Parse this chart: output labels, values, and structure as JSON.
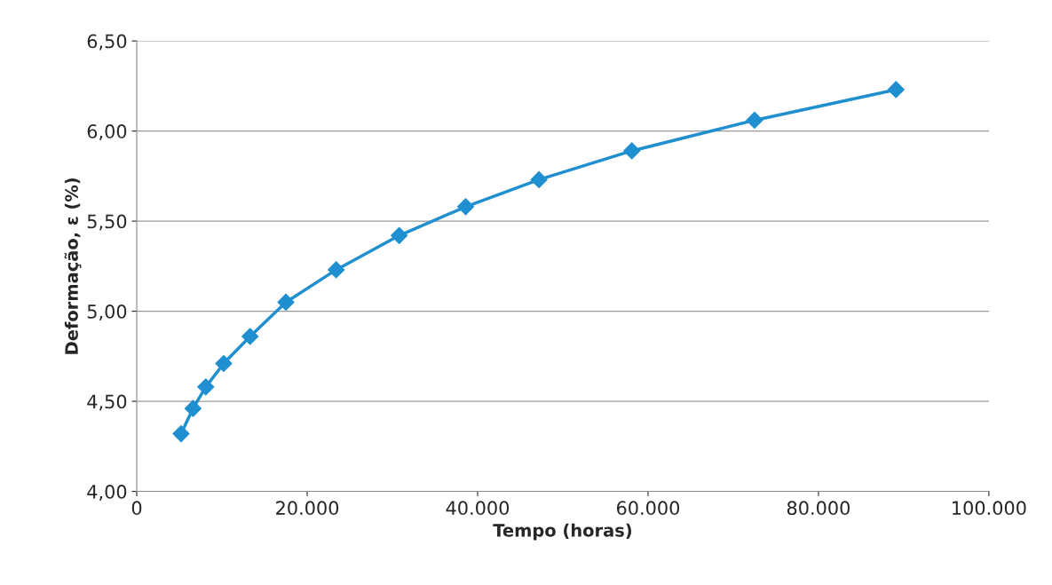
{
  "chart_data": {
    "type": "line",
    "xlabel": "Tempo (horas)",
    "ylabel": "Deformação, ε (%)",
    "x": [
      5200,
      6600,
      8100,
      10200,
      13300,
      17500,
      23400,
      30800,
      38600,
      47200,
      58100,
      72500,
      89100
    ],
    "series": [
      {
        "color": "#1f8fd0",
        "values": [
          4.32,
          4.46,
          4.58,
          4.71,
          4.86,
          5.05,
          5.23,
          5.42,
          5.58,
          5.73,
          5.89,
          6.06,
          6.23
        ]
      }
    ],
    "xlim": [
      0,
      100000
    ],
    "ylim": [
      4.0,
      6.5
    ],
    "xticks": [
      0,
      {
        "value": 20000,
        "label": "20.000"
      },
      {
        "value": 40000,
        "label": "40.000"
      },
      {
        "value": 60000,
        "label": "60.000"
      },
      {
        "value": 80000,
        "label": "80.000"
      },
      {
        "value": 100000,
        "label": "100.000"
      }
    ],
    "yticks": [
      {
        "value": 4.0,
        "label": "4,00"
      },
      {
        "value": 4.5,
        "label": "4,50"
      },
      {
        "value": 5.0,
        "label": "5,00"
      },
      {
        "value": 5.5,
        "label": "5,50"
      },
      {
        "value": 6.0,
        "label": "6,00"
      },
      {
        "value": 6.5,
        "label": "6,50"
      }
    ],
    "grid": "y",
    "marker": "diamond",
    "line_style": "solid"
  }
}
